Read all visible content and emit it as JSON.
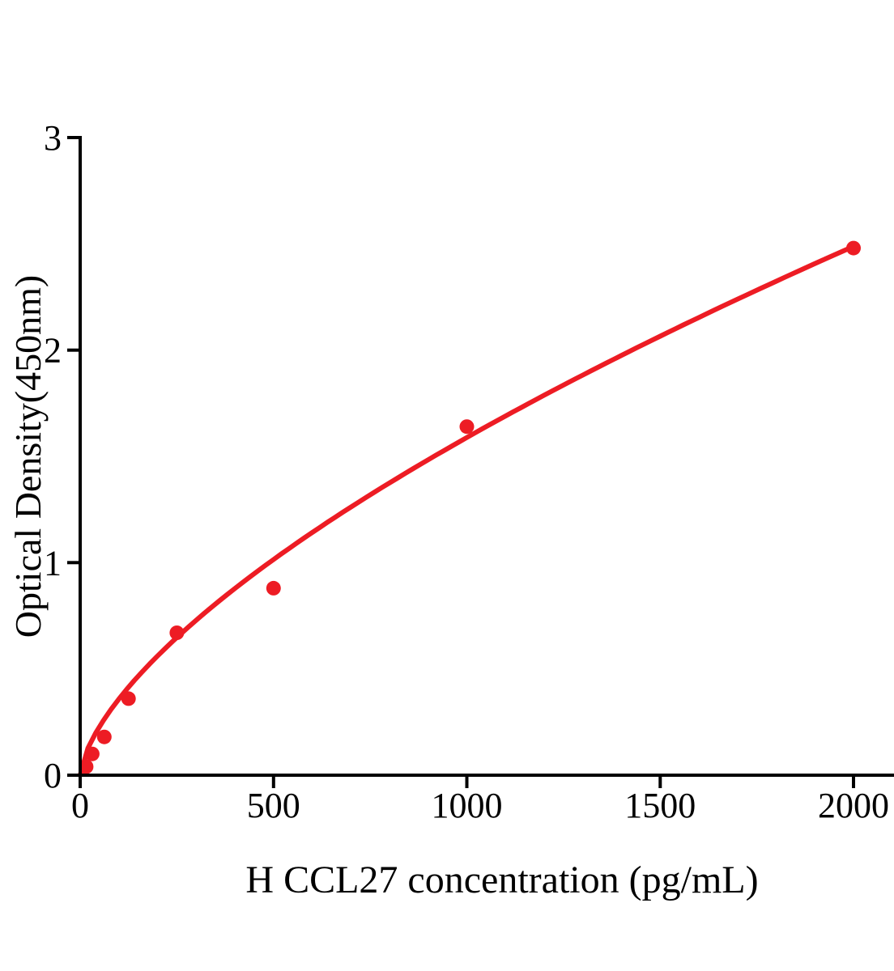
{
  "chart_data": {
    "type": "scatter",
    "title": "",
    "xlabel": "H CCL27 concentration (pg/mL)",
    "ylabel": "Optical Density(450nm)",
    "x": [
      15.6,
      31.25,
      62.5,
      125,
      250,
      500,
      1000,
      2000
    ],
    "y": [
      0.04,
      0.1,
      0.18,
      0.36,
      0.67,
      0.88,
      1.64,
      2.48
    ],
    "x_ticks": [
      0,
      500,
      1000,
      1500,
      2000
    ],
    "y_ticks": [
      0,
      1,
      2,
      3
    ],
    "xlim": [
      0,
      2100
    ],
    "ylim": [
      0,
      3
    ],
    "grid": false,
    "legend": "none",
    "fit_curve": {
      "model": "power",
      "a": 0.0182,
      "b": 0.647,
      "range": [
        0,
        2000
      ]
    },
    "colors": {
      "marker": "#ed1c24",
      "line": "#ed1c24",
      "axis": "#000000",
      "background": "#ffffff"
    }
  }
}
